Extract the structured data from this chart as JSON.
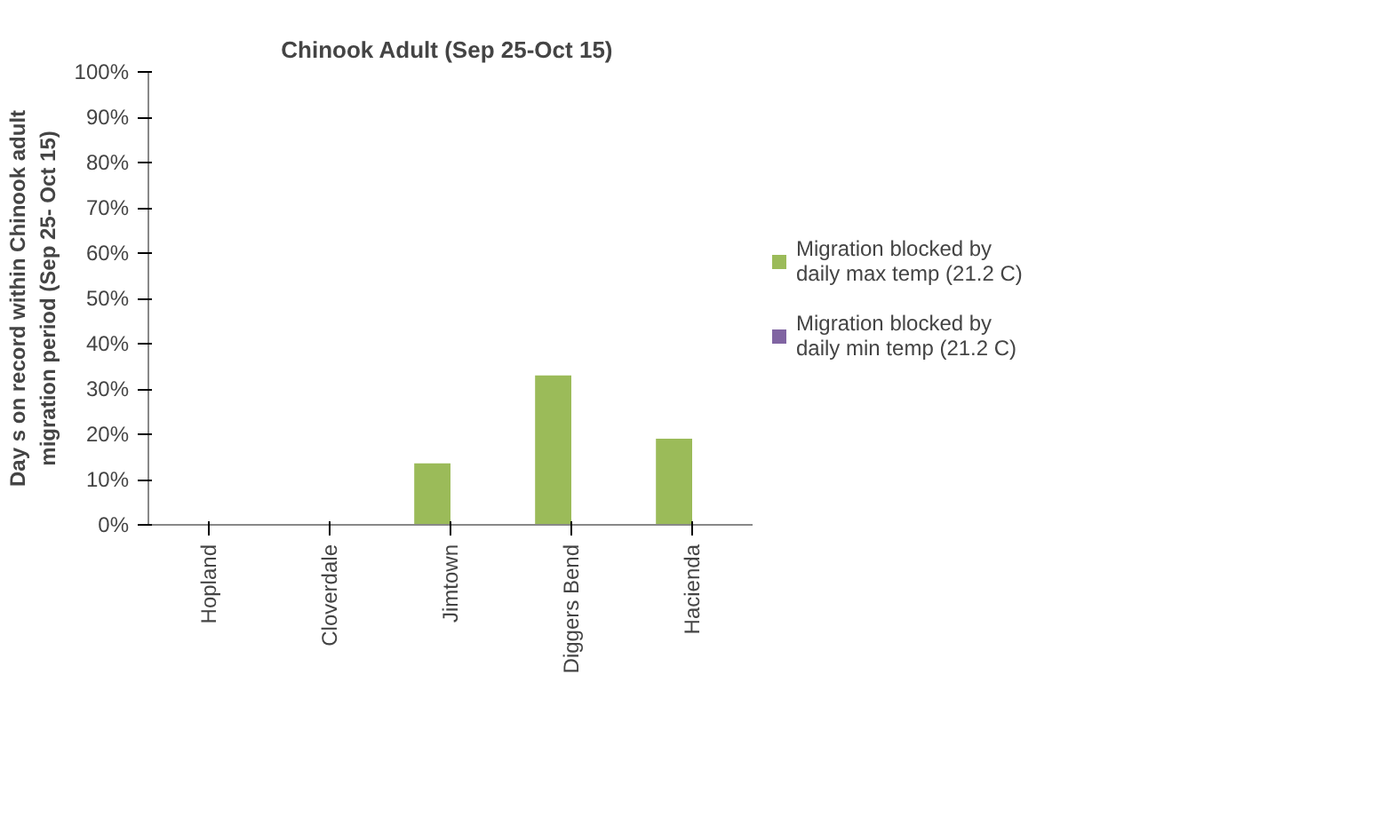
{
  "chart_data": {
    "type": "bar",
    "title": "Chinook Adult  (Sep 25-Oct 15)",
    "ylabel": "Day s on record within Chinook adult migration period (Sep 25- Oct 15)",
    "categories": [
      "Hopland",
      "Cloverdale",
      "Jimtown",
      "Diggers Bend",
      "Hacienda"
    ],
    "series": [
      {
        "name": "Migration blocked by daily max temp (21.2 C)",
        "color": "#9bbb59",
        "values": [
          0,
          0,
          13.6,
          33,
          19
        ]
      },
      {
        "name": "Migration blocked by daily min temp (21.2 C)",
        "color": "#8064a2",
        "values": [
          0,
          0,
          0,
          0,
          0
        ]
      }
    ],
    "ylim": [
      0,
      100
    ],
    "yticks": [
      {
        "value": 0,
        "label": "0%"
      },
      {
        "value": 10,
        "label": "10%"
      },
      {
        "value": 20,
        "label": "20%"
      },
      {
        "value": 30,
        "label": "30%"
      },
      {
        "value": 40,
        "label": "40%"
      },
      {
        "value": 50,
        "label": "50%"
      },
      {
        "value": 60,
        "label": "60%"
      },
      {
        "value": 70,
        "label": "70%"
      },
      {
        "value": 80,
        "label": "80%"
      },
      {
        "value": 90,
        "label": "90%"
      },
      {
        "value": 100,
        "label": "100%"
      }
    ],
    "grid": false,
    "legend": "right"
  }
}
